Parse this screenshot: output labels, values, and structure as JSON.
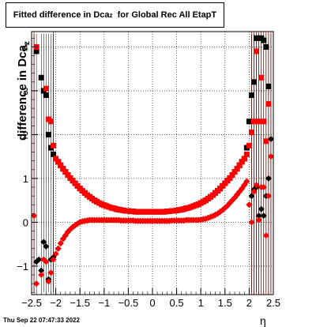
{
  "title": {
    "main": "Fitted difference in Dca",
    "sub": "z",
    "rest": "  for Global Rec All EtapT"
  },
  "ylabel": {
    "main": "difference in Dca",
    "sub": "z"
  },
  "xlabel": "η",
  "timestamp": "Thu Sep 22 07:47:33 2022",
  "colors": {
    "black_series": "#000000",
    "red_series": "#ff0000",
    "grid": "#000000",
    "vlines": "#cc0000"
  },
  "chart_data": {
    "type": "scatter",
    "title": "Fitted difference in Dca_z  for Global Rec All EtapT",
    "xlabel": "η",
    "ylabel": "difference in Dca_z",
    "xlim": [
      -2.5,
      2.5
    ],
    "ylim": [
      -1.65,
      4.35
    ],
    "xticks": [
      -2.5,
      -2,
      -1.5,
      -1,
      -0.5,
      0,
      0.5,
      1,
      1.5,
      2,
      2.5
    ],
    "xtick_labels": [
      "−2.5",
      "−2",
      "−1.5",
      "−1",
      "−0.5",
      "0",
      "0.5",
      "1",
      "1.5",
      "2",
      "2.5"
    ],
    "yticks": [
      -1,
      0,
      1,
      2,
      3,
      4
    ],
    "ytick_labels": [
      "−1",
      "0",
      "1",
      "2",
      "3",
      "4"
    ],
    "grid": true,
    "series": [
      {
        "marker": "square",
        "color": "#000000",
        "x": [
          -2.45,
          -2.4,
          -2.35,
          -2.3,
          -2.25,
          -2.2,
          -2.15,
          -2.1,
          -2.05,
          -2.0,
          -1.95,
          -1.9,
          -1.85,
          -1.8,
          -1.75,
          -1.7,
          -1.65,
          -1.6,
          -1.55,
          -1.5,
          -1.45,
          -1.4,
          -1.35,
          -1.3,
          -1.25,
          -1.2,
          -1.15,
          -1.1,
          -1.05,
          -1.0,
          -0.95,
          -0.9,
          -0.85,
          -0.8,
          -0.75,
          -0.7,
          -0.65,
          -0.6,
          -0.55,
          -0.5,
          -0.45,
          -0.4,
          -0.35,
          -0.3,
          -0.25,
          -0.2,
          -0.15,
          -0.1,
          -0.05,
          0.0,
          0.05,
          0.1,
          0.15,
          0.2,
          0.25,
          0.3,
          0.35,
          0.4,
          0.45,
          0.5,
          0.55,
          0.6,
          0.65,
          0.7,
          0.75,
          0.8,
          0.85,
          0.9,
          0.95,
          1.0,
          1.05,
          1.1,
          1.15,
          1.2,
          1.25,
          1.3,
          1.35,
          1.4,
          1.45,
          1.5,
          1.55,
          1.6,
          1.65,
          1.7,
          1.75,
          1.8,
          1.85,
          1.9,
          1.95,
          2.0,
          2.05,
          2.1,
          2.15,
          2.2,
          2.25,
          2.3,
          2.35,
          2.4,
          2.45
        ],
        "y": [
          null,
          3.9,
          null,
          3.3,
          3.0,
          2.9,
          2.0,
          1.7,
          1.55,
          1.45,
          1.38,
          1.3,
          1.22,
          1.15,
          1.08,
          1.01,
          0.95,
          0.89,
          0.83,
          0.77,
          0.72,
          0.67,
          0.62,
          0.58,
          0.54,
          0.5,
          0.47,
          0.44,
          0.41,
          0.39,
          0.37,
          0.35,
          0.33,
          0.32,
          0.3,
          0.29,
          0.28,
          0.27,
          0.26,
          0.26,
          0.25,
          0.25,
          0.24,
          0.24,
          0.24,
          0.24,
          0.24,
          0.24,
          0.24,
          0.24,
          0.24,
          0.24,
          0.24,
          0.24,
          0.24,
          0.25,
          0.25,
          0.26,
          0.26,
          0.27,
          0.28,
          0.29,
          0.3,
          0.32,
          0.33,
          0.35,
          0.37,
          0.39,
          0.41,
          0.44,
          0.47,
          0.5,
          0.54,
          0.58,
          0.62,
          0.67,
          0.72,
          0.77,
          0.83,
          0.89,
          0.95,
          1.01,
          1.08,
          1.15,
          1.22,
          1.3,
          1.38,
          1.45,
          1.7,
          2.3,
          2.9,
          3.2,
          4.2,
          4.2,
          4.2,
          4.15,
          4.0,
          3.1,
          null
        ]
      },
      {
        "marker": "diamond",
        "color": "#000000",
        "x": [
          -2.45,
          -2.4,
          -2.35,
          -2.3,
          -2.25,
          -2.2,
          -2.15,
          -2.1,
          -2.05,
          -2.0,
          -1.95,
          -1.9,
          -1.85,
          -1.8,
          -1.75,
          -1.7,
          -1.65,
          -1.6,
          -1.55,
          -1.5,
          -1.45,
          -1.4,
          -1.35,
          -1.3,
          -1.25,
          -1.2,
          -1.15,
          -1.1,
          -1.05,
          -1.0,
          -0.95,
          -0.9,
          -0.85,
          -0.8,
          -0.75,
          -0.7,
          -0.65,
          -0.6,
          -0.55,
          -0.5,
          -0.45,
          -0.4,
          -0.35,
          -0.3,
          -0.25,
          -0.2,
          -0.15,
          -0.1,
          -0.05,
          0.0,
          0.05,
          0.1,
          0.15,
          0.2,
          0.25,
          0.3,
          0.35,
          0.4,
          0.45,
          0.5,
          0.55,
          0.6,
          0.65,
          0.7,
          0.75,
          0.8,
          0.85,
          0.9,
          0.95,
          1.0,
          1.05,
          1.1,
          1.15,
          1.2,
          1.25,
          1.3,
          1.35,
          1.4,
          1.45,
          1.5,
          1.55,
          1.6,
          1.65,
          1.7,
          1.75,
          1.8,
          1.85,
          1.9,
          1.95,
          2.0,
          2.05,
          2.1,
          2.15,
          2.2,
          2.25,
          2.3,
          2.35,
          2.4,
          2.45
        ],
        "y": [
          null,
          -0.9,
          -0.85,
          -1.1,
          -0.45,
          -0.55,
          -1.3,
          -0.85,
          -0.8,
          -0.72,
          -0.6,
          -0.48,
          -0.38,
          -0.3,
          -0.22,
          -0.16,
          -0.11,
          -0.07,
          -0.03,
          0.0,
          0.02,
          0.03,
          0.04,
          0.05,
          0.05,
          0.05,
          0.05,
          0.05,
          0.05,
          0.05,
          0.05,
          0.05,
          0.05,
          0.05,
          0.05,
          0.05,
          0.04,
          0.04,
          0.04,
          0.04,
          0.04,
          0.04,
          0.03,
          0.03,
          0.03,
          0.03,
          0.03,
          0.03,
          0.03,
          0.03,
          0.03,
          0.03,
          0.03,
          0.03,
          0.03,
          0.03,
          0.03,
          0.04,
          0.04,
          0.04,
          0.04,
          0.04,
          0.04,
          0.05,
          0.05,
          0.05,
          0.05,
          0.05,
          0.05,
          0.06,
          0.07,
          0.08,
          0.1,
          0.12,
          0.14,
          0.17,
          0.2,
          0.24,
          0.28,
          0.33,
          0.38,
          0.44,
          0.5,
          0.56,
          0.63,
          0.7,
          0.77,
          0.85,
          0.93,
          0.4,
          0.6,
          0.75,
          0.8,
          0.15,
          0.3,
          0.15,
          0.6,
          1.0,
          1.9
        ]
      },
      {
        "marker": "square",
        "color": "#ff0000",
        "x": [
          -2.45,
          -2.4,
          -2.35,
          -2.3,
          -2.25,
          -2.2,
          -2.15,
          -2.1,
          -2.05,
          -2.0,
          -1.95,
          -1.9,
          -1.85,
          -1.8,
          -1.75,
          -1.7,
          -1.65,
          -1.6,
          -1.55,
          -1.5,
          -1.45,
          -1.4,
          -1.35,
          -1.3,
          -1.25,
          -1.2,
          -1.15,
          -1.1,
          -1.05,
          -1.0,
          -0.95,
          -0.9,
          -0.85,
          -0.8,
          -0.75,
          -0.7,
          -0.65,
          -0.6,
          -0.55,
          -0.5,
          -0.45,
          -0.4,
          -0.35,
          -0.3,
          -0.25,
          -0.2,
          -0.15,
          -0.1,
          -0.05,
          0.0,
          0.05,
          0.1,
          0.15,
          0.2,
          0.25,
          0.3,
          0.35,
          0.4,
          0.45,
          0.5,
          0.55,
          0.6,
          0.65,
          0.7,
          0.75,
          0.8,
          0.85,
          0.9,
          0.95,
          1.0,
          1.05,
          1.1,
          1.15,
          1.2,
          1.25,
          1.3,
          1.35,
          1.4,
          1.45,
          1.5,
          1.55,
          1.6,
          1.65,
          1.7,
          1.75,
          1.8,
          1.85,
          1.9,
          1.95,
          2.0,
          2.05,
          2.1,
          2.15,
          2.2,
          2.25,
          2.3,
          2.35,
          2.4,
          2.45
        ],
        "y": [
          null,
          4.0,
          null,
          null,
          null,
          3.05,
          2.35,
          2.3,
          1.75,
          1.45,
          1.38,
          1.3,
          1.22,
          1.15,
          1.08,
          1.01,
          0.95,
          0.89,
          0.83,
          0.77,
          0.72,
          0.67,
          0.62,
          0.58,
          0.54,
          0.5,
          0.47,
          0.44,
          0.41,
          0.39,
          0.37,
          0.35,
          0.33,
          0.32,
          0.3,
          0.29,
          0.28,
          0.27,
          0.26,
          0.26,
          0.25,
          0.25,
          0.24,
          0.24,
          0.24,
          0.24,
          0.24,
          0.24,
          0.24,
          0.24,
          0.24,
          0.24,
          0.24,
          0.24,
          0.24,
          0.25,
          0.25,
          0.26,
          0.26,
          0.27,
          0.28,
          0.29,
          0.3,
          0.32,
          0.33,
          0.35,
          0.37,
          0.39,
          0.41,
          0.44,
          0.47,
          0.5,
          0.54,
          0.58,
          0.62,
          0.67,
          0.72,
          0.77,
          0.83,
          0.89,
          0.95,
          1.01,
          1.08,
          1.15,
          1.22,
          1.3,
          1.38,
          1.45,
          1.55,
          1.75,
          2.05,
          2.3,
          3.9,
          2.3,
          3.3,
          2.3,
          1.85,
          2.7,
          null
        ]
      },
      {
        "marker": "diamond",
        "color": "#ff0000",
        "x": [
          -2.45,
          -2.4,
          -2.35,
          -2.3,
          -2.25,
          -2.2,
          -2.15,
          -2.1,
          -2.05,
          -2.0,
          -1.95,
          -1.9,
          -1.85,
          -1.8,
          -1.75,
          -1.7,
          -1.65,
          -1.6,
          -1.55,
          -1.5,
          -1.45,
          -1.4,
          -1.35,
          -1.3,
          -1.25,
          -1.2,
          -1.15,
          -1.1,
          -1.05,
          -1.0,
          -0.95,
          -0.9,
          -0.85,
          -0.8,
          -0.75,
          -0.7,
          -0.65,
          -0.6,
          -0.55,
          -0.5,
          -0.45,
          -0.4,
          -0.35,
          -0.3,
          -0.25,
          -0.2,
          -0.15,
          -0.1,
          -0.05,
          0.0,
          0.05,
          0.1,
          0.15,
          0.2,
          0.25,
          0.3,
          0.35,
          0.4,
          0.45,
          0.5,
          0.55,
          0.6,
          0.65,
          0.7,
          0.75,
          0.8,
          0.85,
          0.9,
          0.95,
          1.0,
          1.05,
          1.1,
          1.15,
          1.2,
          1.25,
          1.3,
          1.35,
          1.4,
          1.45,
          1.5,
          1.55,
          1.6,
          1.65,
          1.7,
          1.75,
          1.8,
          1.85,
          1.9,
          1.95,
          2.0,
          2.05,
          2.1,
          2.15,
          2.2,
          2.25,
          2.3,
          2.35,
          2.4,
          2.45
        ],
        "y": [
          0.15,
          -1.4,
          null,
          -1.2,
          -0.85,
          -0.9,
          -1.35,
          -1.15,
          -0.85,
          -0.72,
          -0.6,
          -0.48,
          -0.38,
          -0.3,
          -0.22,
          -0.16,
          -0.11,
          -0.07,
          -0.03,
          0.0,
          0.02,
          0.03,
          0.04,
          0.05,
          0.05,
          0.05,
          0.05,
          0.05,
          0.05,
          0.05,
          0.05,
          0.05,
          0.05,
          0.05,
          0.05,
          0.05,
          0.04,
          0.04,
          0.04,
          0.04,
          0.04,
          0.04,
          0.03,
          0.03,
          0.03,
          0.03,
          0.03,
          0.03,
          0.03,
          0.03,
          0.03,
          0.03,
          0.03,
          0.03,
          0.03,
          0.03,
          0.03,
          0.04,
          0.04,
          0.04,
          0.04,
          0.04,
          0.04,
          0.05,
          0.05,
          0.05,
          0.05,
          0.05,
          0.05,
          0.06,
          0.07,
          0.08,
          0.1,
          0.12,
          0.14,
          0.17,
          0.2,
          0.24,
          0.28,
          0.33,
          0.38,
          0.44,
          0.5,
          0.56,
          0.63,
          0.7,
          0.77,
          0.85,
          0.93,
          0.4,
          0.0,
          0.7,
          0.85,
          0.05,
          0.8,
          0.8,
          -0.3,
          0.6,
          1.5
        ]
      }
    ]
  }
}
